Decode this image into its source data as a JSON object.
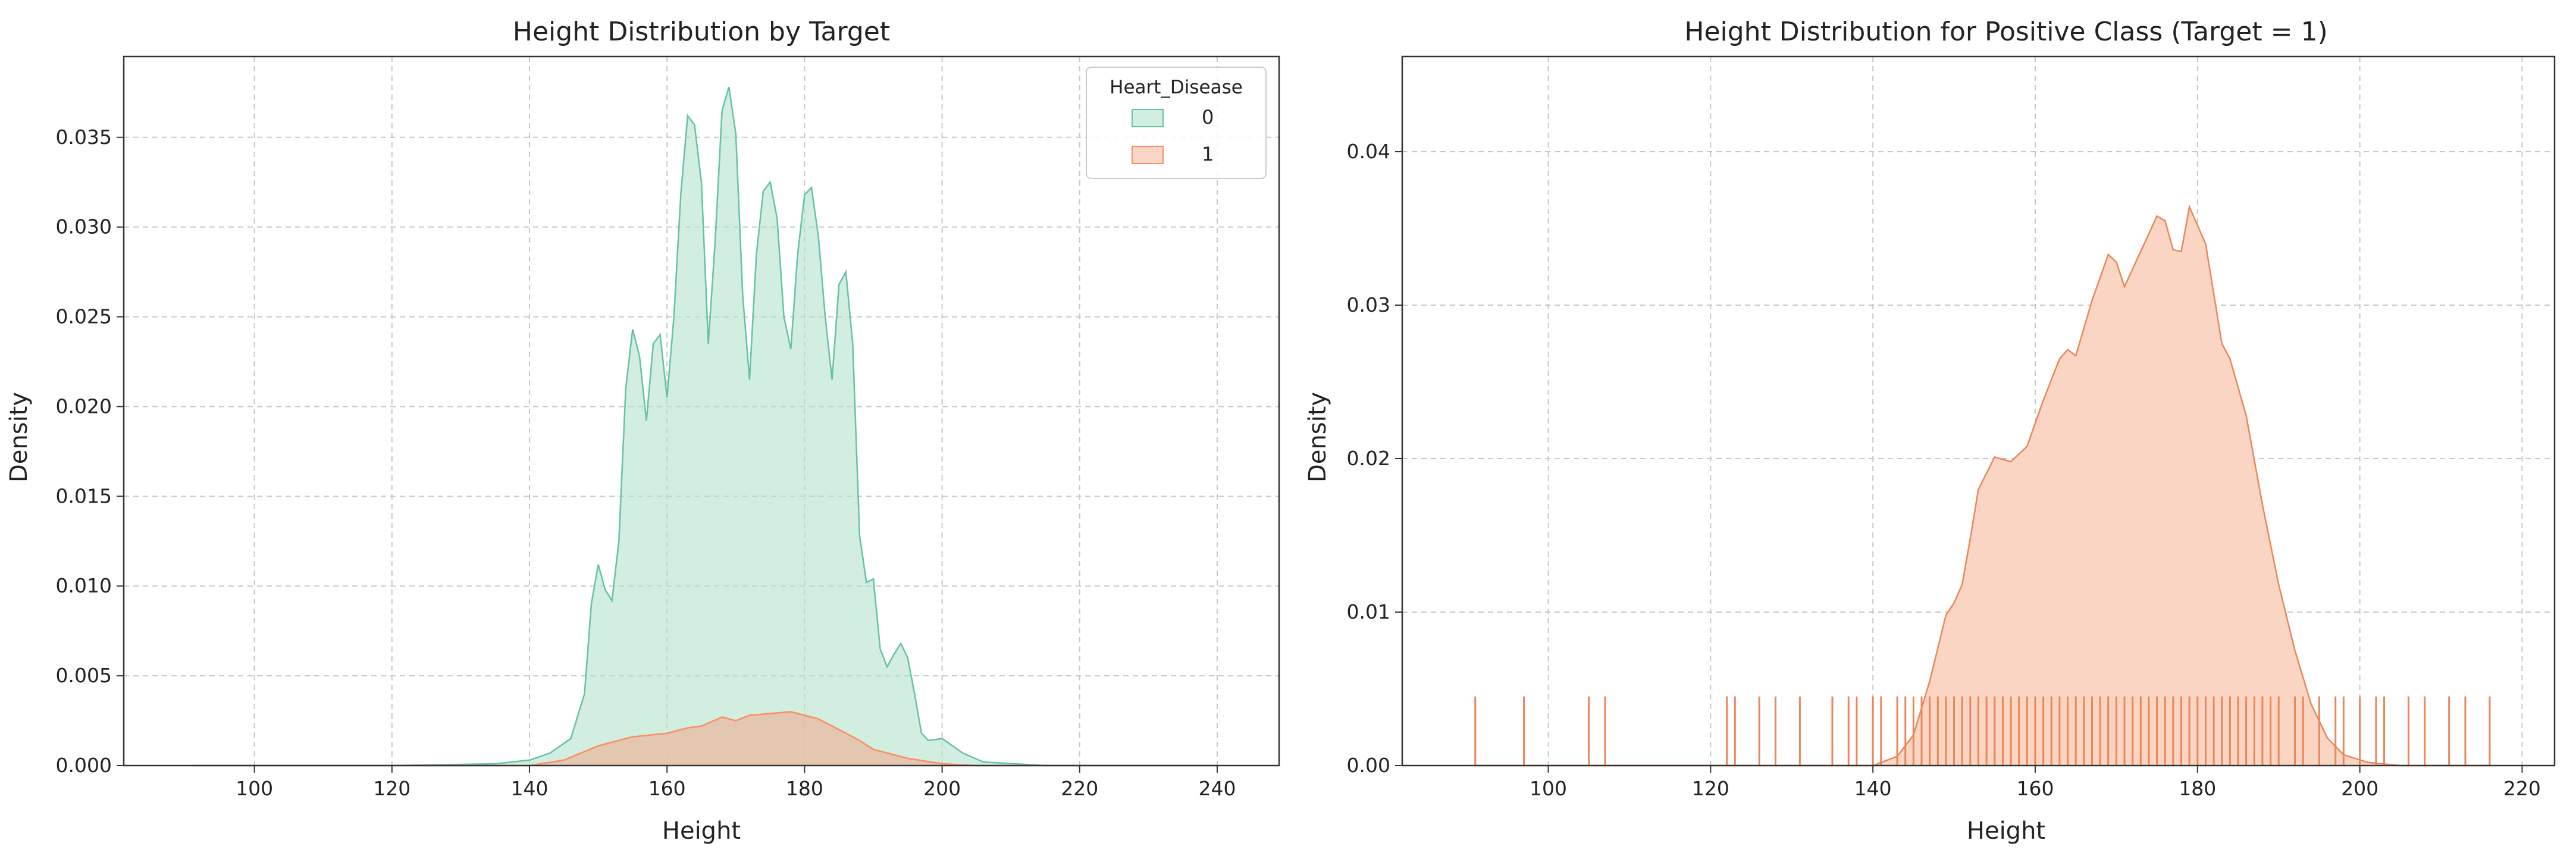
{
  "chart_data": [
    {
      "type": "area",
      "title": "Height Distribution by Target",
      "xlabel": "Height",
      "ylabel": "Density",
      "xlim": [
        81,
        249
      ],
      "ylim": [
        0,
        0.0395
      ],
      "xticks": [
        100,
        120,
        140,
        160,
        180,
        200,
        220,
        240
      ],
      "yticks": [
        0.0,
        0.005,
        0.01,
        0.015,
        0.02,
        0.025,
        0.03,
        0.035
      ],
      "ytick_labels": [
        "0.000",
        "0.005",
        "0.010",
        "0.015",
        "0.020",
        "0.025",
        "0.030",
        "0.035"
      ],
      "grid": true,
      "legend": {
        "title": "Heart_Disease",
        "placement": "top-right",
        "entries": [
          "0",
          "1"
        ]
      },
      "series": [
        {
          "name": "0",
          "color": "#66c2a5",
          "fill": "#b3e2cd",
          "x": [
            91,
            120,
            135,
            140,
            143,
            146,
            148,
            149,
            150,
            151,
            152,
            153,
            154,
            155,
            156,
            157,
            158,
            159,
            160,
            161,
            162,
            163,
            164,
            165,
            166,
            167,
            168,
            169,
            170,
            171,
            172,
            173,
            174,
            175,
            176,
            177,
            178,
            179,
            180,
            181,
            182,
            183,
            184,
            185,
            186,
            187,
            188,
            189,
            190,
            191,
            192,
            193,
            194,
            195,
            196,
            197,
            198,
            200,
            203,
            206,
            215,
            240
          ],
          "y": [
            0.0,
            0.0,
            0.0001,
            0.0003,
            0.0007,
            0.0015,
            0.004,
            0.009,
            0.0112,
            0.0098,
            0.0092,
            0.0125,
            0.021,
            0.0243,
            0.0228,
            0.0192,
            0.0235,
            0.024,
            0.0205,
            0.025,
            0.0318,
            0.0362,
            0.0357,
            0.0325,
            0.0235,
            0.0292,
            0.0365,
            0.0378,
            0.0352,
            0.0262,
            0.0215,
            0.0285,
            0.032,
            0.0325,
            0.0305,
            0.025,
            0.0232,
            0.0285,
            0.0318,
            0.0322,
            0.0295,
            0.025,
            0.0215,
            0.0268,
            0.0275,
            0.0235,
            0.0128,
            0.0102,
            0.0104,
            0.0065,
            0.0055,
            0.0062,
            0.0068,
            0.006,
            0.004,
            0.0018,
            0.0014,
            0.0015,
            0.0007,
            0.0002,
            0.0,
            0.0
          ]
        },
        {
          "name": "1",
          "color": "#fc8d62",
          "fill": "#e8b9a0",
          "x": [
            91,
            140,
            145,
            150,
            155,
            160,
            163,
            165,
            168,
            170,
            172,
            175,
            178,
            180,
            182,
            185,
            188,
            190,
            195,
            200,
            205,
            240
          ],
          "y": [
            0.0,
            0.0,
            0.0003,
            0.0011,
            0.0016,
            0.0018,
            0.0021,
            0.0022,
            0.0027,
            0.0025,
            0.0028,
            0.0029,
            0.003,
            0.0028,
            0.0026,
            0.002,
            0.0014,
            0.0009,
            0.0004,
            0.0001,
            0.0,
            0.0
          ]
        }
      ]
    },
    {
      "type": "area",
      "title": "Height Distribution for Positive Class (Target = 1)",
      "xlabel": "Height",
      "ylabel": "Density",
      "xlim": [
        82,
        224
      ],
      "ylim": [
        0,
        0.0462
      ],
      "xticks": [
        100,
        120,
        140,
        160,
        180,
        200,
        220
      ],
      "yticks": [
        0.0,
        0.01,
        0.02,
        0.03,
        0.04
      ],
      "ytick_labels": [
        "0.00",
        "0.01",
        "0.02",
        "0.03",
        "0.04"
      ],
      "grid": true,
      "series": [
        {
          "name": "",
          "color": "#e8875a",
          "fill": "#fbd5c3",
          "x": [
            91,
            140,
            143,
            145,
            147,
            149,
            150,
            151,
            152,
            153,
            155,
            157,
            159,
            161,
            163,
            164,
            165,
            167,
            169,
            170,
            171,
            173,
            175,
            176,
            177,
            178,
            179,
            181,
            183,
            184,
            186,
            188,
            190,
            192,
            194,
            196,
            198,
            201,
            205,
            216
          ],
          "y": [
            0.0,
            0.0,
            0.0006,
            0.002,
            0.0055,
            0.0098,
            0.0106,
            0.0118,
            0.0148,
            0.018,
            0.0201,
            0.0198,
            0.0208,
            0.0238,
            0.0265,
            0.0271,
            0.0267,
            0.0303,
            0.0333,
            0.0328,
            0.0312,
            0.0335,
            0.0358,
            0.0355,
            0.0336,
            0.0335,
            0.0364,
            0.034,
            0.0275,
            0.0265,
            0.0228,
            0.017,
            0.0118,
            0.0075,
            0.004,
            0.0018,
            0.0007,
            0.0002,
            0.0,
            0.0
          ]
        }
      ],
      "rug": {
        "color": "#e8875a",
        "height": 0.0045,
        "values": [
          91,
          97,
          105,
          107,
          122,
          123,
          126,
          128,
          131,
          135,
          137,
          138,
          140,
          141,
          143,
          144,
          145,
          146,
          147,
          148,
          149,
          150,
          151,
          152,
          153,
          154,
          155,
          156,
          157,
          158,
          159,
          160,
          161,
          162,
          163,
          164,
          165,
          166,
          167,
          168,
          169,
          170,
          171,
          172,
          173,
          174,
          175,
          176,
          177,
          178,
          179,
          180,
          181,
          182,
          183,
          184,
          185,
          186,
          187,
          188,
          189,
          190,
          192,
          193,
          195,
          197,
          198,
          200,
          202,
          203,
          206,
          208,
          211,
          213,
          216
        ]
      }
    }
  ]
}
